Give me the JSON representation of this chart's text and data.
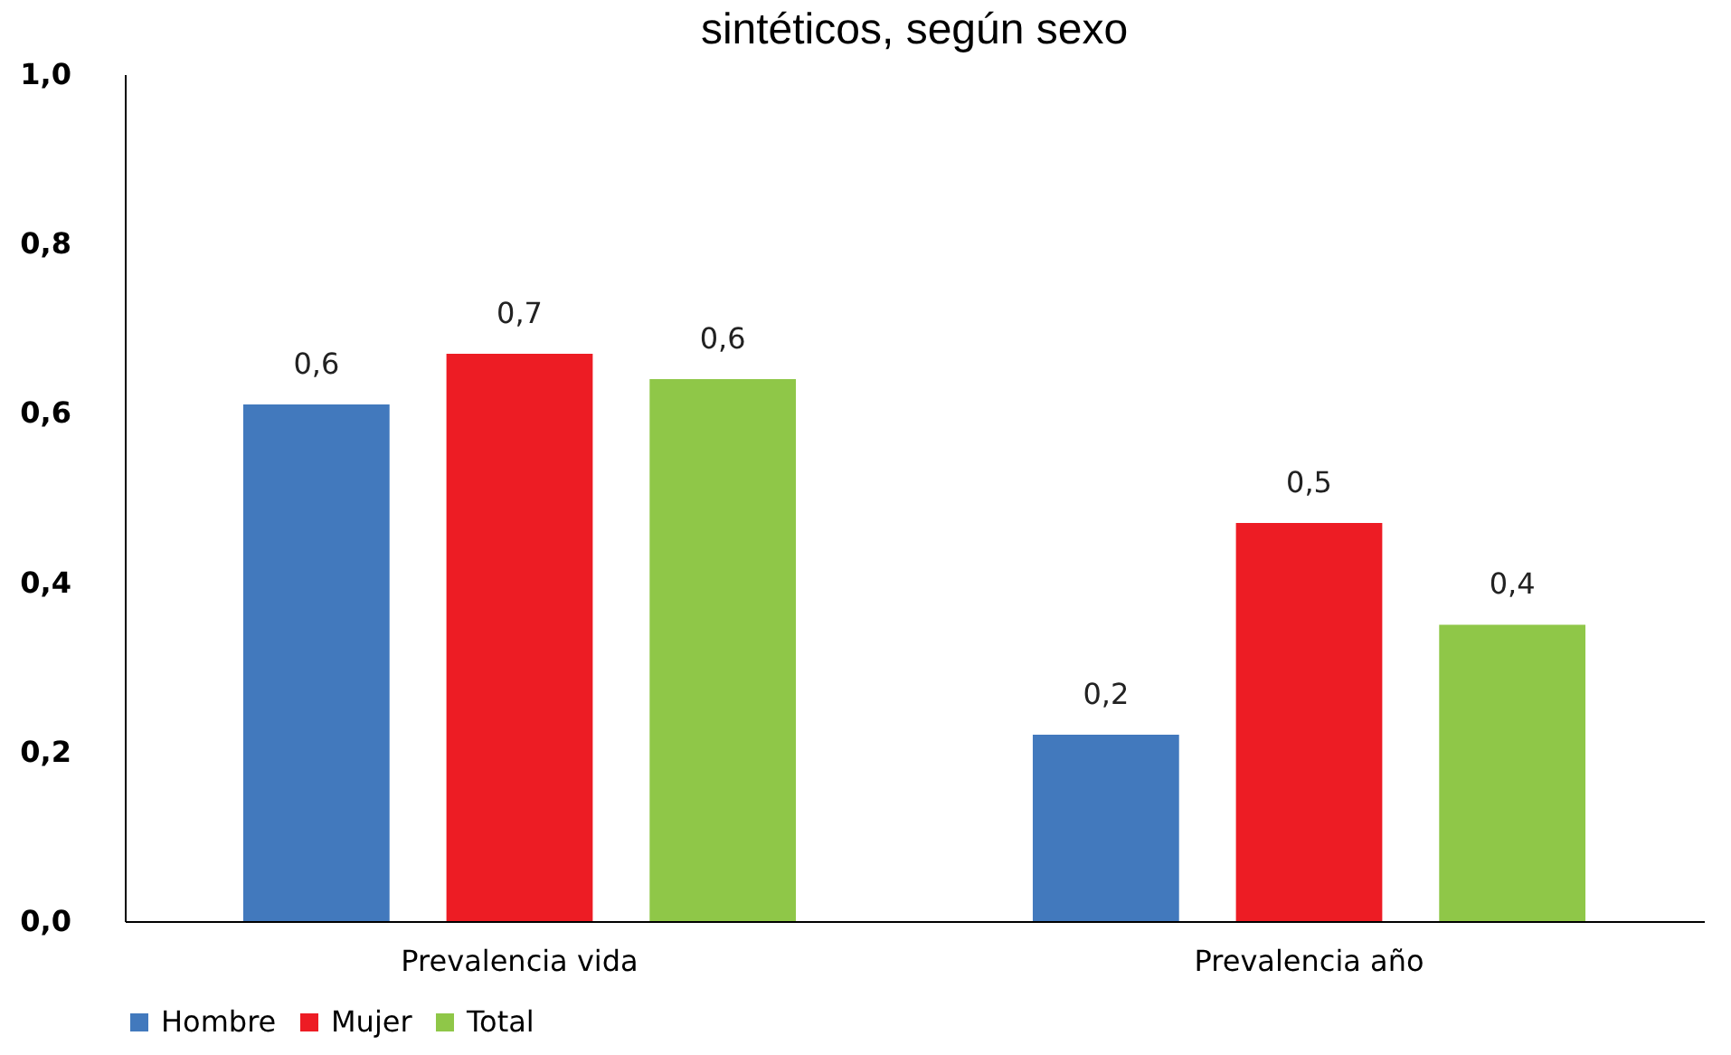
{
  "chart_data": {
    "type": "bar",
    "title": "sintéticos, según sexo",
    "categories": [
      "Prevalencia vida",
      "Prevalencia año"
    ],
    "series": [
      {
        "name": "Hombre",
        "color": "#4279bd",
        "values": [
          0.61,
          0.22
        ],
        "value_labels": [
          "0,6",
          "0,2"
        ]
      },
      {
        "name": "Mujer",
        "color": "#ed1c24",
        "values": [
          0.67,
          0.47
        ],
        "value_labels": [
          "0,7",
          "0,5"
        ]
      },
      {
        "name": "Total",
        "color": "#8fc748",
        "values": [
          0.64,
          0.35
        ],
        "value_labels": [
          "0,6",
          "0,4"
        ]
      }
    ],
    "ylim": [
      0,
      1.0
    ],
    "yticks": [
      {
        "value": 0,
        "label": "0,0"
      },
      {
        "value": 0.2,
        "label": "0,2"
      },
      {
        "value": 0.4,
        "label": "0,4"
      },
      {
        "value": 0.6,
        "label": "0,6"
      },
      {
        "value": 0.8,
        "label": "0,8"
      },
      {
        "value": 1.0,
        "label": "1,0"
      }
    ],
    "grid": false,
    "legend": "bottom"
  }
}
